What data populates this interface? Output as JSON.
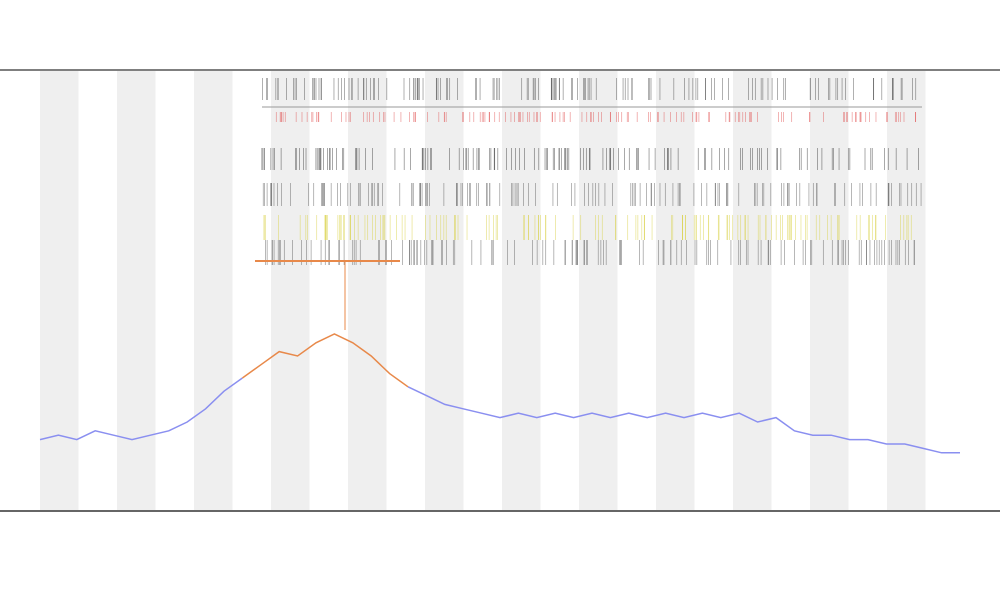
{
  "chart_data": {
    "type": "line",
    "xlim": [
      0,
      100
    ],
    "ylim": [
      0,
      100
    ],
    "x": [
      0,
      2,
      4,
      6,
      8,
      10,
      12,
      14,
      16,
      18,
      20,
      22,
      24,
      26,
      28,
      30,
      32,
      34,
      36,
      38,
      40,
      42,
      44,
      46,
      48,
      50,
      52,
      54,
      56,
      58,
      60,
      62,
      64,
      66,
      68,
      70,
      72,
      74,
      76,
      78,
      80,
      82,
      84,
      86,
      88,
      90,
      92,
      94,
      96,
      98,
      100
    ],
    "series": [
      {
        "color": "#8a8ff0",
        "values": [
          16,
          17,
          16,
          18,
          17,
          16,
          17,
          18,
          20,
          23,
          27,
          30,
          null,
          null,
          null,
          null,
          null,
          null,
          null,
          null,
          28,
          26,
          24,
          23,
          22,
          21,
          22,
          21,
          22,
          21,
          22,
          21,
          22,
          21,
          22,
          21,
          22,
          21,
          22,
          20,
          21,
          18,
          17,
          17,
          16,
          16,
          15,
          15,
          14,
          13,
          13
        ]
      },
      {
        "color": "#e8894a",
        "values": [
          null,
          null,
          null,
          null,
          null,
          null,
          null,
          null,
          null,
          null,
          null,
          30,
          33,
          36,
          35,
          38,
          40,
          38,
          35,
          31,
          28,
          null,
          null,
          null,
          null,
          null,
          null,
          null,
          null,
          null,
          null,
          null,
          null,
          null,
          null,
          null,
          null,
          null,
          null,
          null,
          null,
          null,
          null,
          null,
          null,
          null,
          null,
          null,
          null,
          null,
          null
        ]
      }
    ]
  }
}
